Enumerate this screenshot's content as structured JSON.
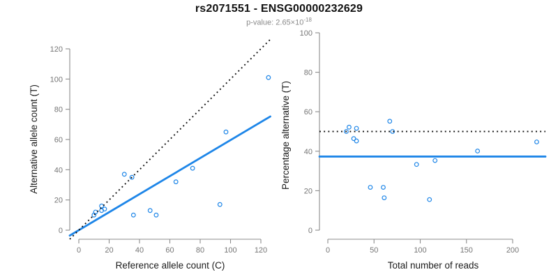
{
  "header": {
    "title": "rs2071551 - ENSG00000232629",
    "subtitle_prefix": "p-value: 2.65×10",
    "subtitle_exponent": "-18"
  },
  "colors": {
    "accent_blue": "#1E86E8",
    "dotted_line_black": "#111111",
    "axis_gray": "#8c8c8c",
    "tick_text_gray": "#757575",
    "axis_title_color": "#1a1a1a",
    "subtitle_gray": "#8a8a8a"
  },
  "chart_data": [
    {
      "type": "scatter",
      "name": "allele-counts-scatter",
      "xlabel": "Reference allele count (C)",
      "ylabel": "Alternative allele count (T)",
      "xlim": [
        0,
        120
      ],
      "ylim": [
        0,
        120
      ],
      "xticks": [
        0,
        20,
        40,
        60,
        80,
        100,
        120
      ],
      "yticks": [
        0,
        20,
        40,
        60,
        80,
        100,
        120
      ],
      "grid": false,
      "legend": null,
      "points": [
        [
          10,
          10
        ],
        [
          11,
          12
        ],
        [
          15,
          16
        ],
        [
          15,
          13
        ],
        [
          17,
          14
        ],
        [
          30,
          37
        ],
        [
          35,
          35
        ],
        [
          36,
          10
        ],
        [
          47,
          13
        ],
        [
          51,
          10
        ],
        [
          64,
          32
        ],
        [
          75,
          41
        ],
        [
          93,
          17
        ],
        [
          97,
          65
        ],
        [
          125,
          101
        ]
      ],
      "lines": [
        {
          "name": "identity-line",
          "style": "dotted",
          "color": "black",
          "slope": 1,
          "intercept": 0
        },
        {
          "name": "fit-line",
          "style": "solid",
          "color": "blue",
          "slope": 0.596,
          "intercept": 0
        }
      ]
    },
    {
      "type": "scatter",
      "name": "percentage-vs-reads-scatter",
      "xlabel": "Total number of reads",
      "ylabel": "Percentage alternative (T)",
      "xlim": [
        0,
        200
      ],
      "ylim": [
        0,
        100
      ],
      "xticks": [
        0,
        50,
        100,
        150,
        200
      ],
      "yticks": [
        0,
        20,
        40,
        60,
        80,
        100
      ],
      "grid": false,
      "legend": null,
      "points": [
        [
          20,
          50.0
        ],
        [
          23,
          52.2
        ],
        [
          31,
          51.6
        ],
        [
          28,
          46.4
        ],
        [
          31,
          45.2
        ],
        [
          46,
          21.7
        ],
        [
          60,
          21.7
        ],
        [
          61,
          16.4
        ],
        [
          67,
          55.2
        ],
        [
          70,
          50.0
        ],
        [
          96,
          33.3
        ],
        [
          110,
          15.5
        ],
        [
          116,
          35.3
        ],
        [
          162,
          40.1
        ],
        [
          226,
          44.7
        ]
      ],
      "lines": [
        {
          "name": "null-line",
          "style": "dotted",
          "color": "black",
          "y": 50
        },
        {
          "name": "fit-line",
          "style": "solid",
          "color": "blue",
          "y": 37.3
        }
      ]
    }
  ]
}
